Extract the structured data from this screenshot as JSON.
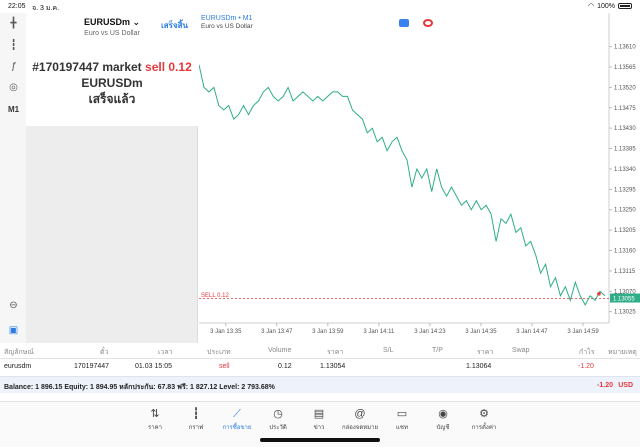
{
  "status": {
    "time": "22:05",
    "date": "จ. 3 ม.ค.",
    "battery": "100%"
  },
  "left_tools": {
    "items": [
      {
        "name": "crosshair-icon",
        "glyph": "╋"
      },
      {
        "name": "candles-icon",
        "glyph": "┇"
      },
      {
        "name": "indicator-icon",
        "glyph": "ƒ"
      },
      {
        "name": "objects-icon",
        "glyph": "◎"
      },
      {
        "name": "timeframe",
        "glyph": "M1"
      }
    ],
    "bottom": [
      {
        "name": "zoom-icon",
        "glyph": "⊖"
      },
      {
        "name": "new-order-icon",
        "glyph": "▣"
      }
    ]
  },
  "panel": {
    "symbol": "EURUSDm ⌄",
    "symbol_desc": "Euro vs US Dollar",
    "done_label": "เสร็จสิ้น",
    "result_line1_prefix": "#170197447 market",
    "result_side": "sell 0.12",
    "result_symbol": "EURUSDm",
    "result_status": "เสร็จแล้ว"
  },
  "chart": {
    "title": "EURUSDm • M1",
    "desc": "Euro vs US Dollar",
    "sell_line_label": "SELL 0.12",
    "current_price": "1.13055"
  },
  "chart_data": {
    "type": "line",
    "title": "EURUSDm • M1",
    "x_ticks": [
      "3 Jan 13:35",
      "3 Jan 13:47",
      "3 Jan 13:59",
      "3 Jan 14:11",
      "3 Jan 14:23",
      "3 Jan 14:35",
      "3 Jan 14:47",
      "3 Jan 14:59"
    ],
    "y_ticks": [
      "1.13610",
      "1.13565",
      "1.13520",
      "1.13475",
      "1.13430",
      "1.13385",
      "1.13340",
      "1.13295",
      "1.13250",
      "1.13205",
      "1.13160",
      "1.13115",
      "1.13070",
      "1.13025"
    ],
    "ylim": [
      1.13,
      1.1364
    ],
    "sell_level": 1.13054,
    "series": [
      {
        "color": "#2fae89",
        "values": [
          1.1357,
          1.1352,
          1.1351,
          1.1352,
          1.1348,
          1.1347,
          1.1348,
          1.1345,
          1.1346,
          1.1348,
          1.1346,
          1.1348,
          1.1349,
          1.1351,
          1.1352,
          1.135,
          1.1349,
          1.135,
          1.1352,
          1.1349,
          1.135,
          1.1351,
          1.135,
          1.1349,
          1.135,
          1.1349,
          1.135,
          1.1351,
          1.1351,
          1.135,
          1.135,
          1.1347,
          1.1346,
          1.1345,
          1.1342,
          1.1343,
          1.134,
          1.1341,
          1.1338,
          1.134,
          1.1341,
          1.1338,
          1.1336,
          1.133,
          1.1334,
          1.1332,
          1.1334,
          1.1329,
          1.1334,
          1.133,
          1.1328,
          1.133,
          1.1328,
          1.1326,
          1.1327,
          1.1325,
          1.1327,
          1.1325,
          1.1326,
          1.1324,
          1.1318,
          1.1323,
          1.1322,
          1.1324,
          1.132,
          1.1321,
          1.1317,
          1.1318,
          1.1315,
          1.1311,
          1.1313,
          1.1308,
          1.131,
          1.1306,
          1.1308,
          1.1305,
          1.1309,
          1.1306,
          1.1304,
          1.1306,
          1.1305,
          1.1307,
          1.1306
        ]
      }
    ]
  },
  "table": {
    "headers": [
      "สัญลักษณ์",
      "ตั๋ว",
      "เวลา",
      "ประเภท",
      "Volume",
      "ราคา",
      "S/L",
      "T/P",
      "ราคา",
      "Swap",
      "กำไร",
      "หมายเหตุ"
    ],
    "row": {
      "symbol": "eurusdm",
      "ticket": "170197447",
      "time": "01.03 15:05",
      "type": "sell",
      "volume": "0.12",
      "price": "1.13054",
      "sl": "",
      "tp": "",
      "cur_price": "1.13064",
      "swap": "",
      "profit": "-1.20",
      "comment": ""
    },
    "balance_text": "Balance: 1 896.15 Equity: 1 894.95 หลักประกัน: 67.83 ฟรี: 1 827.12 Level: 2 793.68%",
    "balance_profit": "-1.20",
    "balance_currency": "USD"
  },
  "tabbar": {
    "items": [
      {
        "label": "ราคา",
        "glyph": "⇅"
      },
      {
        "label": "กราฟ",
        "glyph": "┇"
      },
      {
        "label": "การซื้อขาย",
        "glyph": "⟋"
      },
      {
        "label": "ประวัติ",
        "glyph": "◷"
      },
      {
        "label": "ข่าว",
        "glyph": "▤"
      },
      {
        "label": "กล่องจดหมาย",
        "glyph": "@"
      },
      {
        "label": "แชท",
        "glyph": "▭"
      },
      {
        "label": "บัญชี",
        "glyph": "◉"
      },
      {
        "label": "การตั้งค่า",
        "glyph": "⚙"
      }
    ],
    "active_index": 2
  }
}
